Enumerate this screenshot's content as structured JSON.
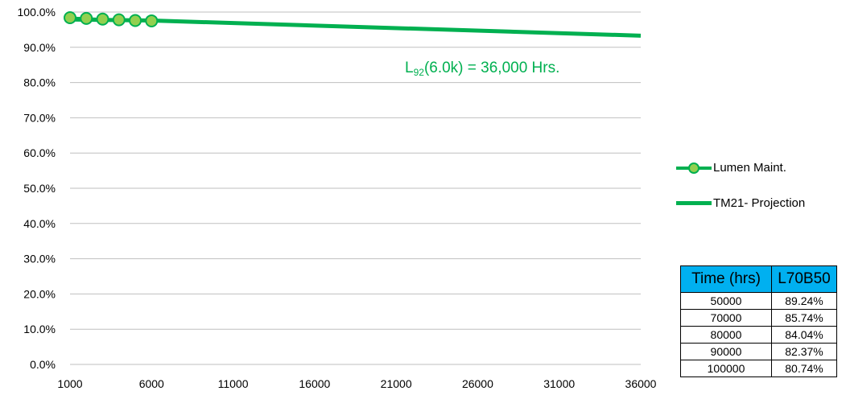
{
  "chart_data": {
    "type": "line",
    "x_range": [
      1000,
      36000
    ],
    "y_range_percent": [
      0,
      100
    ],
    "y_ticks": [
      "0.0%",
      "10.0%",
      "20.0%",
      "30.0%",
      "40.0%",
      "50.0%",
      "60.0%",
      "70.0%",
      "80.0%",
      "90.0%",
      "100.0%"
    ],
    "x_ticks": [
      "1000",
      "6000",
      "11000",
      "16000",
      "21000",
      "26000",
      "31000",
      "36000"
    ],
    "grid": "horizontal",
    "legend_position": "right",
    "series": [
      {
        "name": "Lumen Maint.",
        "style": "line-with-markers",
        "x": [
          1000,
          2000,
          3000,
          4000,
          5000,
          6000
        ],
        "y": [
          98.4,
          98.2,
          98.0,
          97.8,
          97.6,
          97.5
        ]
      },
      {
        "name": "TM21- Projection",
        "style": "thick-line",
        "x": [
          1000,
          6000,
          36000
        ],
        "y": [
          97.9,
          97.6,
          93.3
        ]
      }
    ],
    "annotation": {
      "prefix": "L",
      "subscript": "92",
      "suffix": "(6.0k) = 36,000 Hrs."
    },
    "colors": {
      "line": "#00b050",
      "marker_fill": "#92d050",
      "grid": "#bfbfbf",
      "table_header": "#00b0f0"
    }
  },
  "table": {
    "headers": [
      "Time (hrs)",
      "L70B50"
    ],
    "rows": [
      [
        "50000",
        "89.24%"
      ],
      [
        "70000",
        "85.74%"
      ],
      [
        "80000",
        "84.04%"
      ],
      [
        "90000",
        "82.37%"
      ],
      [
        "100000",
        "80.74%"
      ]
    ]
  }
}
